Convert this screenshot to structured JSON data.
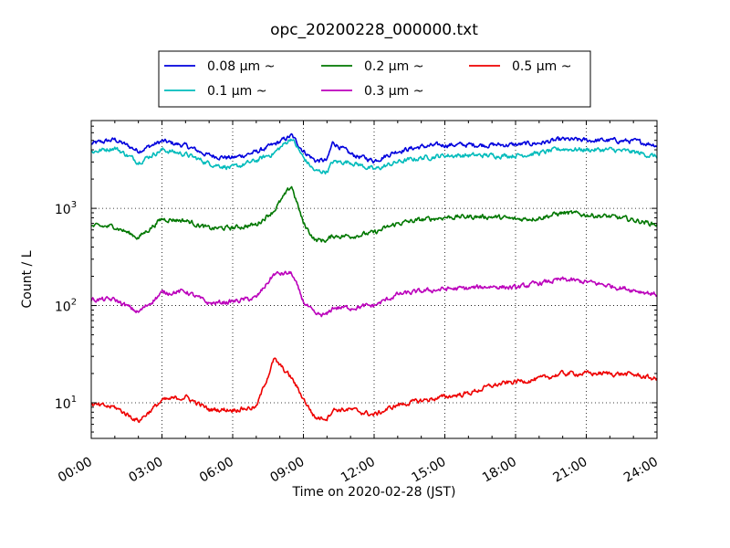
{
  "chart_data": {
    "type": "line",
    "title": "opc_20200228_000000.txt",
    "xlabel": "Time on 2020-02-28 (JST)",
    "ylabel": "Count / L",
    "yscale": "log",
    "xlim": [
      "00:00",
      "24:00"
    ],
    "ylim": [
      4.3,
      8000
    ],
    "grid": true,
    "legend_position": "top-center",
    "x_ticks": [
      "00:00",
      "03:00",
      "06:00",
      "09:00",
      "12:00",
      "15:00",
      "18:00",
      "21:00",
      "24:00"
    ],
    "y_ticks": [
      {
        "value": 10,
        "base": "10",
        "exp": "1"
      },
      {
        "value": 100,
        "base": "10",
        "exp": "2"
      },
      {
        "value": 1000,
        "base": "10",
        "exp": "3"
      }
    ],
    "x": [
      "00:00",
      "01:00",
      "02:00",
      "03:00",
      "04:00",
      "05:00",
      "06:00",
      "07:00",
      "07:45",
      "08:30",
      "09:00",
      "09:30",
      "10:00",
      "10:15",
      "11:00",
      "12:00",
      "13:00",
      "14:00",
      "15:00",
      "16:00",
      "17:00",
      "18:00",
      "19:00",
      "20:00",
      "21:00",
      "22:00",
      "23:00",
      "24:00"
    ],
    "series": [
      {
        "name": "0.08 μm ~",
        "color": "#0000dd",
        "values": [
          4600,
          5100,
          3900,
          4900,
          4400,
          3500,
          3300,
          3800,
          4500,
          5600,
          3900,
          3100,
          3100,
          4800,
          3600,
          3100,
          3900,
          4300,
          4500,
          4500,
          4500,
          4500,
          4700,
          5100,
          5000,
          5000,
          4900,
          4500
        ]
      },
      {
        "name": "0.1 μm ~",
        "color": "#00bbbb",
        "values": [
          3800,
          4200,
          3000,
          4000,
          3600,
          2900,
          2600,
          3100,
          3700,
          5300,
          3300,
          2400,
          2400,
          3000,
          3000,
          2500,
          3000,
          3300,
          3500,
          3500,
          3500,
          3500,
          3700,
          4100,
          4000,
          4000,
          3800,
          3400
        ]
      },
      {
        "name": "0.2 μm ~",
        "color": "#007700",
        "values": [
          650,
          650,
          500,
          780,
          750,
          620,
          630,
          680,
          950,
          1700,
          700,
          470,
          470,
          520,
          520,
          560,
          700,
          760,
          810,
          820,
          820,
          770,
          800,
          900,
          860,
          820,
          760,
          680
        ]
      },
      {
        "name": "0.3 μm ~",
        "color": "#bb00bb",
        "values": [
          115,
          115,
          85,
          135,
          140,
          105,
          110,
          120,
          210,
          215,
          110,
          80,
          80,
          95,
          95,
          100,
          130,
          140,
          148,
          150,
          158,
          152,
          170,
          185,
          175,
          160,
          145,
          130
        ]
      },
      {
        "name": "0.5 μm ~",
        "color": "#ee0000",
        "values": [
          9.5,
          9,
          6.5,
          10.5,
          11.5,
          8.5,
          8.5,
          9,
          28,
          18,
          11,
          7,
          7,
          8.5,
          8.5,
          7.5,
          9.5,
          10.5,
          11.5,
          12.5,
          15,
          16.5,
          17.5,
          20,
          20,
          20,
          19.5,
          17.5
        ]
      }
    ]
  }
}
